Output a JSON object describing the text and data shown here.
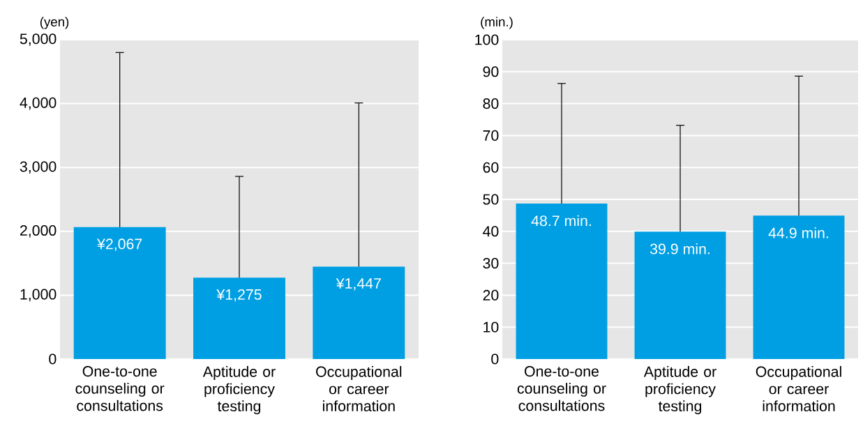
{
  "chart_data": [
    {
      "type": "bar",
      "ylabel": "(yen)",
      "categories": [
        "One-to-one counseling or consultations",
        "Aptitude or proficiency testing",
        "Occupational or career information"
      ],
      "values": [
        2067,
        1275,
        1447
      ],
      "color": "#009fe3",
      "errors": [
        [
          2067,
          4800
        ],
        [
          1275,
          2860
        ],
        [
          1447,
          4010
        ]
      ],
      "value_labels": [
        "¥2,067",
        "¥1,275",
        "¥1,447"
      ],
      "ylim": [
        0,
        5000
      ],
      "yticks": [
        0,
        {
          "value": 1000,
          "label": "1,000"
        },
        {
          "value": 2000,
          "label": "2,000"
        },
        {
          "value": 3000,
          "label": "3,000"
        },
        {
          "value": 4000,
          "label": "4,000"
        },
        {
          "value": 5000,
          "label": "5,000"
        }
      ],
      "grid": "y"
    },
    {
      "type": "bar",
      "ylabel": "(min.)",
      "categories": [
        "One-to-one counseling or consultations",
        "Aptitude or proficiency testing",
        "Occupational or career information"
      ],
      "values": [
        48.7,
        39.9,
        44.9
      ],
      "color": "#009fe3",
      "errors": [
        [
          48.7,
          86.3
        ],
        [
          39.9,
          73.2
        ],
        [
          44.9,
          88.6
        ]
      ],
      "value_labels": [
        "48.7 min.",
        "39.9 min.",
        "44.9 min."
      ],
      "ylim": [
        0,
        100
      ],
      "yticks": [
        0,
        10,
        20,
        30,
        40,
        50,
        60,
        70,
        80,
        90,
        100
      ],
      "grid": "y"
    }
  ]
}
